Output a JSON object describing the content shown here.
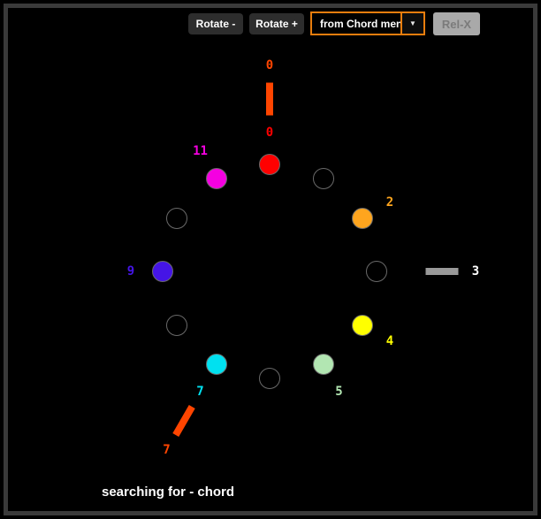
{
  "toolbar": {
    "rotate_minus": "Rotate -",
    "rotate_plus": "Rotate +",
    "chord_menu_value": "from Chord men...",
    "relx": "Rel-X"
  },
  "icons": {
    "chevron_down_glyph": "▼"
  },
  "status_text": "searching for - chord",
  "colors": {
    "frame_border": "#3a3a3a",
    "button_bg": "#2d2d2d",
    "dropdown_border": "#e87d0d",
    "relx_bg": "#a9a9a9",
    "accent_orange": "#ff4500"
  },
  "chart_data": {
    "type": "pitch-class-clock",
    "positions": 12,
    "filled_pitch_classes": [
      0,
      2,
      4,
      5,
      7,
      9,
      11
    ],
    "marker_pitch_classes": [
      0,
      3,
      7
    ],
    "nodes": [
      {
        "pc": 0,
        "filled": true,
        "color": "#ff0000",
        "label": "0"
      },
      {
        "pc": 1,
        "filled": false
      },
      {
        "pc": 2,
        "filled": true,
        "color": "#ffa51e",
        "label": "2"
      },
      {
        "pc": 3,
        "filled": false
      },
      {
        "pc": 4,
        "filled": true,
        "color": "#ffff00",
        "label": "4"
      },
      {
        "pc": 5,
        "filled": true,
        "color": "#b2e6b2",
        "label": "5"
      },
      {
        "pc": 6,
        "filled": false
      },
      {
        "pc": 7,
        "filled": true,
        "color": "#00e1f0",
        "label": "7"
      },
      {
        "pc": 8,
        "filled": false
      },
      {
        "pc": 9,
        "filled": true,
        "color": "#4515e6",
        "label": "9"
      },
      {
        "pc": 10,
        "filled": false
      },
      {
        "pc": 11,
        "filled": true,
        "color": "#f500e1",
        "label": "11"
      }
    ],
    "markers": [
      {
        "pc": 0,
        "color": "#ff4500",
        "label": "0",
        "label_color": "#ff4500"
      },
      {
        "pc": 3,
        "color": "#999999",
        "label": "3",
        "label_color": "#ffffff"
      },
      {
        "pc": 7,
        "color": "#ff4500",
        "label": "7",
        "label_color": "#ff4500"
      }
    ]
  }
}
